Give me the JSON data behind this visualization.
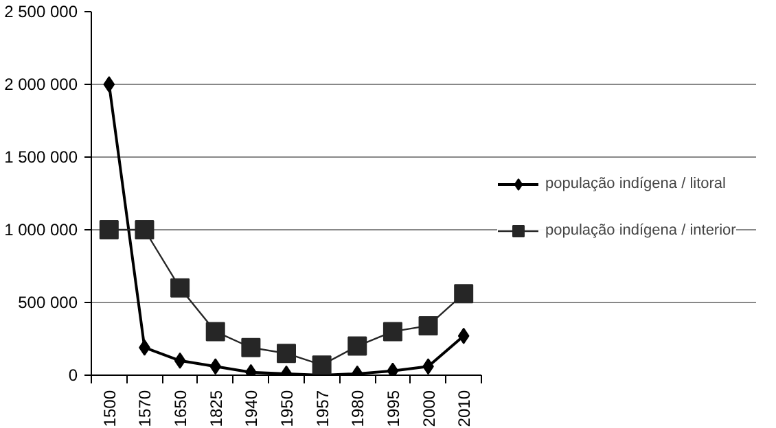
{
  "chart_data": {
    "type": "line",
    "categories": [
      "1500",
      "1570",
      "1650",
      "1825",
      "1940",
      "1950",
      "1957",
      "1980",
      "1995",
      "2000",
      "2010"
    ],
    "series": [
      {
        "name": "população indígena / litoral",
        "color": "#000000",
        "marker": "diamond",
        "values": [
          2000000,
          190000,
          100000,
          60000,
          20000,
          10000,
          0,
          10000,
          30000,
          60000,
          270000
        ]
      },
      {
        "name": "população indígena / interior",
        "color": "#262626",
        "marker": "square",
        "values": [
          1000000,
          1000000,
          600000,
          300000,
          190000,
          150000,
          70000,
          200000,
          300000,
          340000,
          560000
        ]
      }
    ],
    "ylim": [
      0,
      2500000
    ],
    "yticks": [
      {
        "value": 0,
        "label": "0"
      },
      {
        "value": 500000,
        "label": "500 000"
      },
      {
        "value": 1000000,
        "label": "1 000 000"
      },
      {
        "value": 1500000,
        "label": "1 500 000"
      },
      {
        "value": 2000000,
        "label": "2 000 000"
      },
      {
        "value": 2500000,
        "label": "2 500 000"
      }
    ],
    "grid": "y",
    "legend": "right",
    "line_style": "solid"
  }
}
